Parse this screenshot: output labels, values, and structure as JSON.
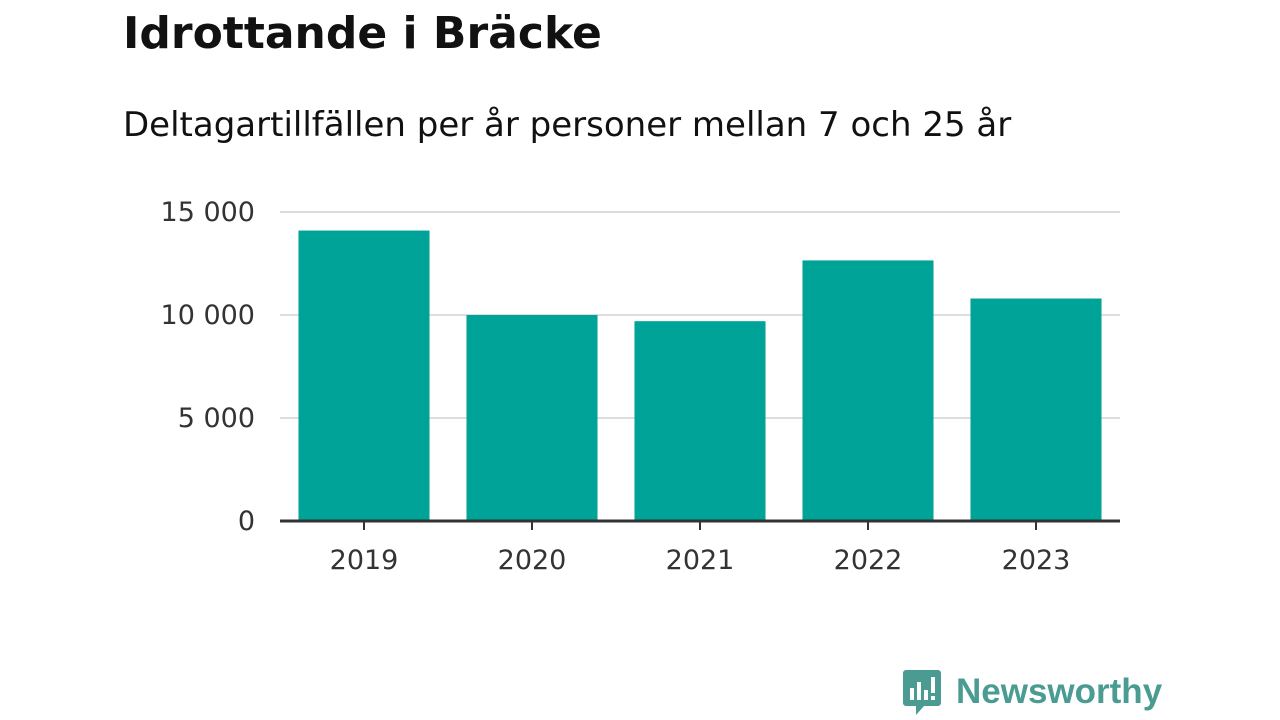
{
  "title": "Idrottande i Bräcke",
  "subtitle": "Deltagartillfällen per år personer mellan 7 och 25 år",
  "brand": {
    "name": "Newsworthy",
    "icon": "newsworthy-logo-icon",
    "color": "#4a9c93"
  },
  "chart_data": {
    "type": "bar",
    "title": "Idrottande i Bräcke",
    "subtitle": "Deltagartillfällen per år personer mellan 7 och 25 år",
    "categories": [
      "2019",
      "2020",
      "2021",
      "2022",
      "2023"
    ],
    "values": [
      14100,
      10000,
      9700,
      12650,
      10800
    ],
    "ylim": [
      0,
      15000
    ],
    "yticks": [
      0,
      5000,
      10000,
      15000
    ],
    "ytick_labels": [
      "0",
      "5 000",
      "10 000",
      "15 000"
    ],
    "xlabel": "",
    "ylabel": "",
    "grid": true,
    "colors": {
      "bar": "#00a397",
      "grid": "#dddddd",
      "axis": "#333333"
    }
  }
}
